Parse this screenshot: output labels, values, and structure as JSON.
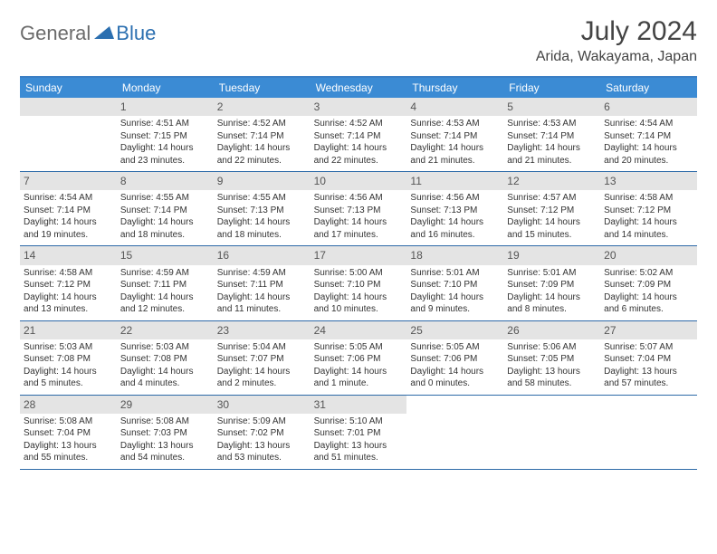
{
  "logo": {
    "general": "General",
    "blue": "Blue"
  },
  "title": "July 2024",
  "location": "Arida, Wakayama, Japan",
  "colors": {
    "header_bg": "#3b8bd4",
    "header_border": "#3b7fc4",
    "cell_border": "#2d6aa8",
    "daynum_bg": "#e4e4e4",
    "logo_gray": "#6b6b6b",
    "logo_blue": "#2b6fb0"
  },
  "day_names": [
    "Sunday",
    "Monday",
    "Tuesday",
    "Wednesday",
    "Thursday",
    "Friday",
    "Saturday"
  ],
  "start_offset": 1,
  "days": [
    {
      "n": 1,
      "sr": "4:51 AM",
      "ss": "7:15 PM",
      "dl": "14 hours and 23 minutes."
    },
    {
      "n": 2,
      "sr": "4:52 AM",
      "ss": "7:14 PM",
      "dl": "14 hours and 22 minutes."
    },
    {
      "n": 3,
      "sr": "4:52 AM",
      "ss": "7:14 PM",
      "dl": "14 hours and 22 minutes."
    },
    {
      "n": 4,
      "sr": "4:53 AM",
      "ss": "7:14 PM",
      "dl": "14 hours and 21 minutes."
    },
    {
      "n": 5,
      "sr": "4:53 AM",
      "ss": "7:14 PM",
      "dl": "14 hours and 21 minutes."
    },
    {
      "n": 6,
      "sr": "4:54 AM",
      "ss": "7:14 PM",
      "dl": "14 hours and 20 minutes."
    },
    {
      "n": 7,
      "sr": "4:54 AM",
      "ss": "7:14 PM",
      "dl": "14 hours and 19 minutes."
    },
    {
      "n": 8,
      "sr": "4:55 AM",
      "ss": "7:14 PM",
      "dl": "14 hours and 18 minutes."
    },
    {
      "n": 9,
      "sr": "4:55 AM",
      "ss": "7:13 PM",
      "dl": "14 hours and 18 minutes."
    },
    {
      "n": 10,
      "sr": "4:56 AM",
      "ss": "7:13 PM",
      "dl": "14 hours and 17 minutes."
    },
    {
      "n": 11,
      "sr": "4:56 AM",
      "ss": "7:13 PM",
      "dl": "14 hours and 16 minutes."
    },
    {
      "n": 12,
      "sr": "4:57 AM",
      "ss": "7:12 PM",
      "dl": "14 hours and 15 minutes."
    },
    {
      "n": 13,
      "sr": "4:58 AM",
      "ss": "7:12 PM",
      "dl": "14 hours and 14 minutes."
    },
    {
      "n": 14,
      "sr": "4:58 AM",
      "ss": "7:12 PM",
      "dl": "14 hours and 13 minutes."
    },
    {
      "n": 15,
      "sr": "4:59 AM",
      "ss": "7:11 PM",
      "dl": "14 hours and 12 minutes."
    },
    {
      "n": 16,
      "sr": "4:59 AM",
      "ss": "7:11 PM",
      "dl": "14 hours and 11 minutes."
    },
    {
      "n": 17,
      "sr": "5:00 AM",
      "ss": "7:10 PM",
      "dl": "14 hours and 10 minutes."
    },
    {
      "n": 18,
      "sr": "5:01 AM",
      "ss": "7:10 PM",
      "dl": "14 hours and 9 minutes."
    },
    {
      "n": 19,
      "sr": "5:01 AM",
      "ss": "7:09 PM",
      "dl": "14 hours and 8 minutes."
    },
    {
      "n": 20,
      "sr": "5:02 AM",
      "ss": "7:09 PM",
      "dl": "14 hours and 6 minutes."
    },
    {
      "n": 21,
      "sr": "5:03 AM",
      "ss": "7:08 PM",
      "dl": "14 hours and 5 minutes."
    },
    {
      "n": 22,
      "sr": "5:03 AM",
      "ss": "7:08 PM",
      "dl": "14 hours and 4 minutes."
    },
    {
      "n": 23,
      "sr": "5:04 AM",
      "ss": "7:07 PM",
      "dl": "14 hours and 2 minutes."
    },
    {
      "n": 24,
      "sr": "5:05 AM",
      "ss": "7:06 PM",
      "dl": "14 hours and 1 minute."
    },
    {
      "n": 25,
      "sr": "5:05 AM",
      "ss": "7:06 PM",
      "dl": "14 hours and 0 minutes."
    },
    {
      "n": 26,
      "sr": "5:06 AM",
      "ss": "7:05 PM",
      "dl": "13 hours and 58 minutes."
    },
    {
      "n": 27,
      "sr": "5:07 AM",
      "ss": "7:04 PM",
      "dl": "13 hours and 57 minutes."
    },
    {
      "n": 28,
      "sr": "5:08 AM",
      "ss": "7:04 PM",
      "dl": "13 hours and 55 minutes."
    },
    {
      "n": 29,
      "sr": "5:08 AM",
      "ss": "7:03 PM",
      "dl": "13 hours and 54 minutes."
    },
    {
      "n": 30,
      "sr": "5:09 AM",
      "ss": "7:02 PM",
      "dl": "13 hours and 53 minutes."
    },
    {
      "n": 31,
      "sr": "5:10 AM",
      "ss": "7:01 PM",
      "dl": "13 hours and 51 minutes."
    }
  ],
  "labels": {
    "sunrise": "Sunrise:",
    "sunset": "Sunset:",
    "daylight": "Daylight:"
  }
}
